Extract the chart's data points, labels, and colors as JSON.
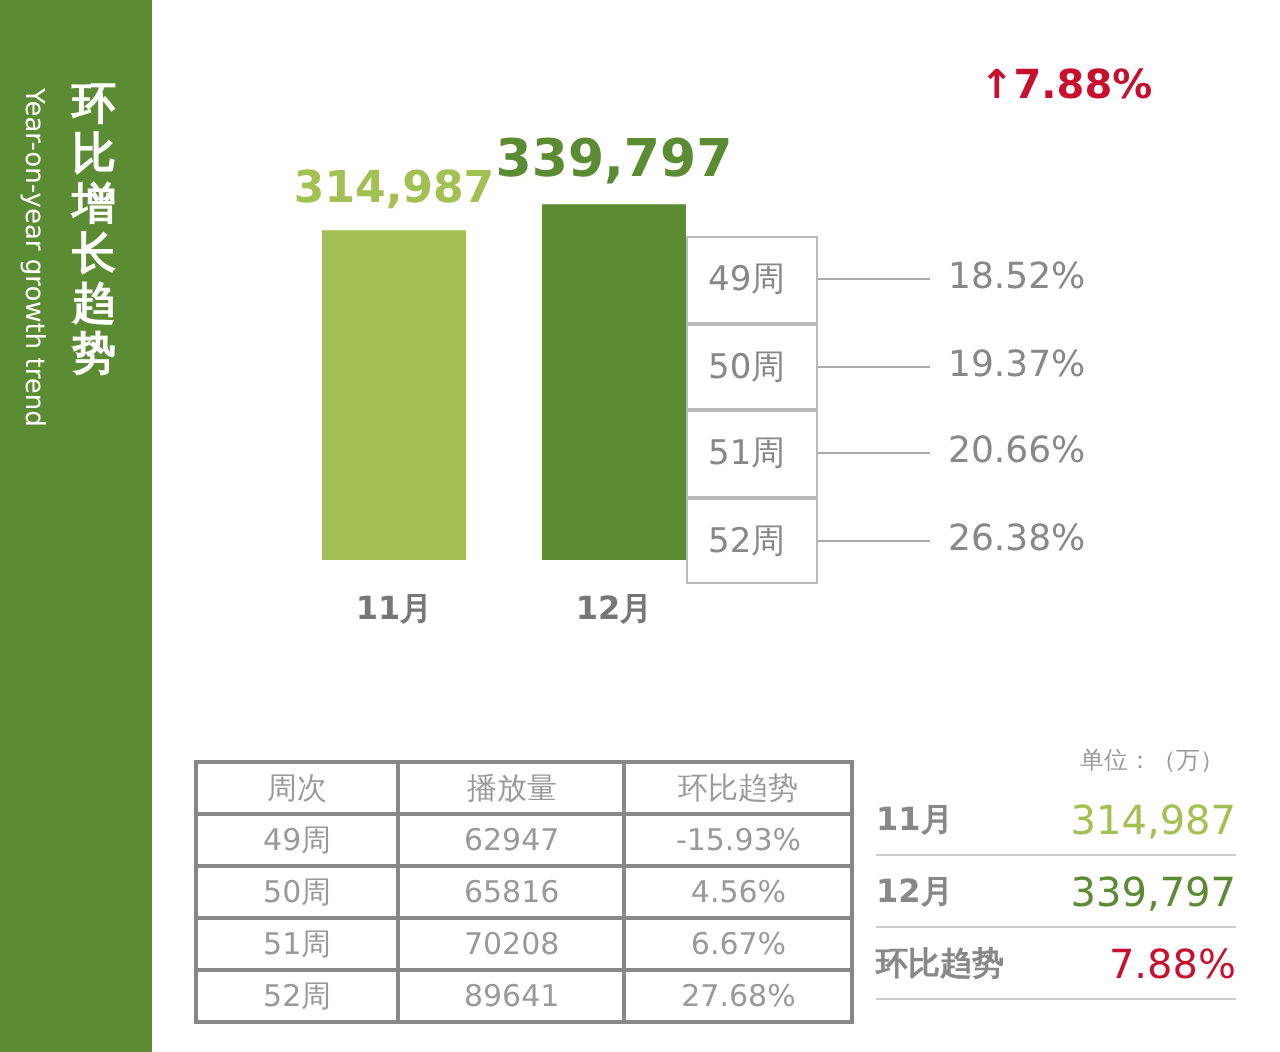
{
  "chart_data": {
    "type": "bar",
    "title": "环比增长趋势",
    "subtitle": "Year-on-year growth trend",
    "categories": [
      "11月",
      "12月"
    ],
    "values": [
      314987,
      339797
    ],
    "colors": [
      "#a3c152",
      "#5b8c33"
    ],
    "value_labels": [
      "314,987",
      "339,797"
    ],
    "annotations": [
      "↑7.88%",
      "49周",
      "50周",
      "51周",
      "52周",
      "18.52%",
      "19.37%",
      "20.66%",
      "26.38%",
      "周次",
      "播放量",
      "环比趋势",
      "49周",
      "62947",
      "-15.93%",
      "50周",
      "65816",
      "4.56%",
      "51周",
      "70208",
      "6.67%",
      "52周",
      "89641",
      "27.68%",
      "单位：（万）",
      "11月",
      "314,987",
      "12月",
      "339,797",
      "环比趋势",
      "7.88%"
    ]
  }
}
